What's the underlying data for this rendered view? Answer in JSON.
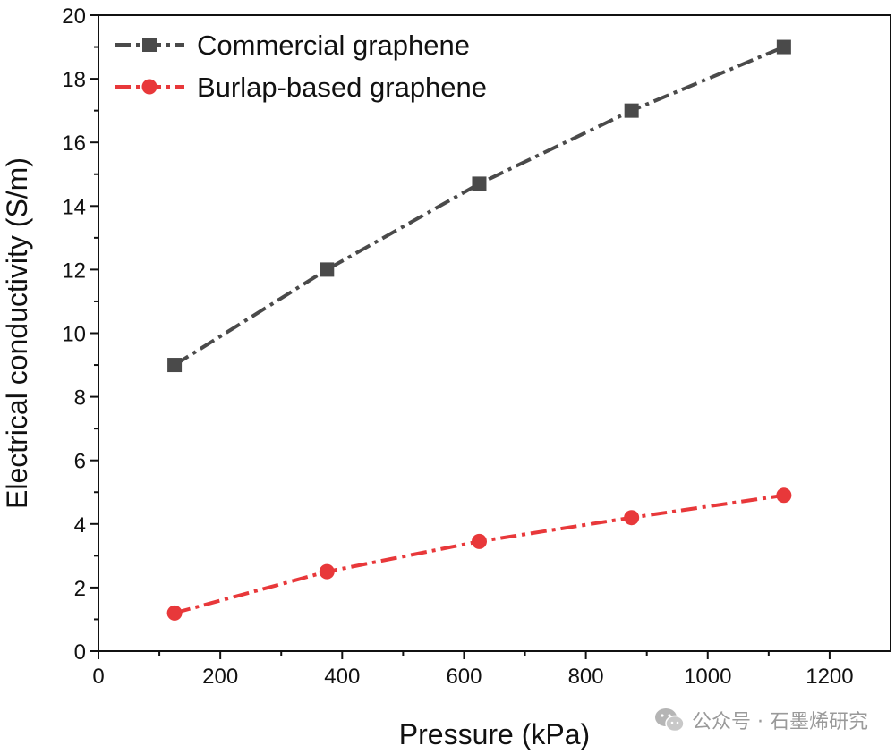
{
  "chart_data": {
    "type": "line",
    "title": "",
    "xlabel": "Pressure (kPa)",
    "ylabel": "Electrical conductivity (S/m)",
    "xlim": [
      0,
      1300
    ],
    "ylim": [
      0,
      20
    ],
    "xticks": [
      0,
      200,
      400,
      600,
      800,
      1000,
      1200
    ],
    "yticks": [
      0,
      2,
      4,
      6,
      8,
      10,
      12,
      14,
      16,
      18,
      20
    ],
    "grid": false,
    "legend_position": "top-left",
    "series": [
      {
        "name": "Commercial graphene",
        "color": "#4a4a4a",
        "marker": "square",
        "line_style": "dash-dot",
        "x": [
          125,
          375,
          625,
          875,
          1125
        ],
        "y": [
          9.0,
          12.0,
          14.7,
          17.0,
          19.0
        ]
      },
      {
        "name": "Burlap-based graphene",
        "color": "#e8383a",
        "marker": "circle",
        "line_style": "dash-dot",
        "x": [
          125,
          375,
          625,
          875,
          1125
        ],
        "y": [
          1.2,
          2.5,
          3.45,
          4.2,
          4.9
        ]
      }
    ]
  },
  "watermark": {
    "icon": "wechat-icon",
    "text": "公众号 · 石墨烯研究"
  }
}
